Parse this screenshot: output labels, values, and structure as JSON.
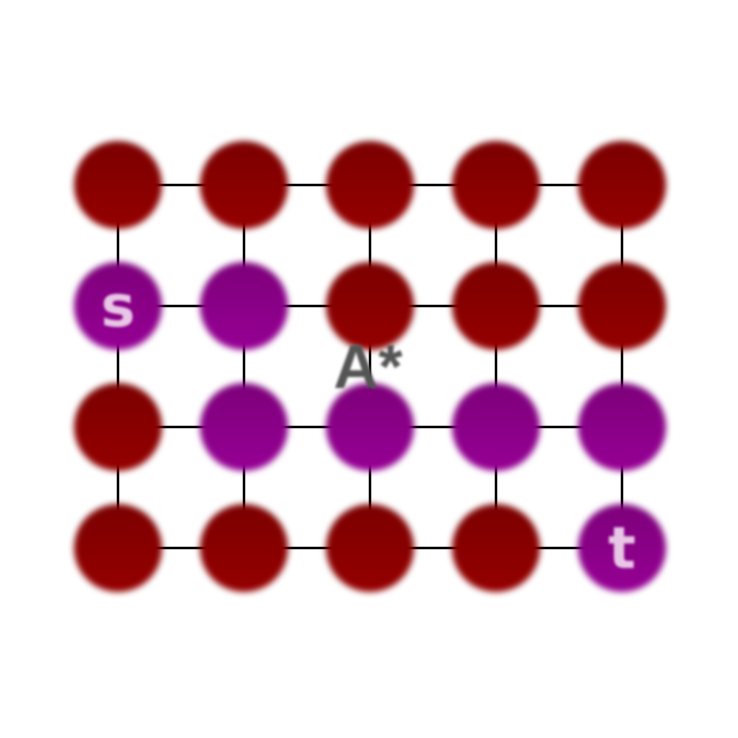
{
  "title": "A*",
  "colors": {
    "unvisited": "#8b0000",
    "path": "#8b008b",
    "edge": "#000000",
    "title": "#555555",
    "label": "#f3dcf1"
  },
  "grid": {
    "rows": 4,
    "cols": 5,
    "path_nodes": [
      [
        1,
        0
      ],
      [
        1,
        1
      ],
      [
        2,
        1
      ],
      [
        2,
        2
      ],
      [
        2,
        3
      ],
      [
        2,
        4
      ],
      [
        3,
        4
      ]
    ],
    "start": {
      "row": 1,
      "col": 0,
      "label": "s"
    },
    "target": {
      "row": 3,
      "col": 4,
      "label": "t"
    }
  }
}
